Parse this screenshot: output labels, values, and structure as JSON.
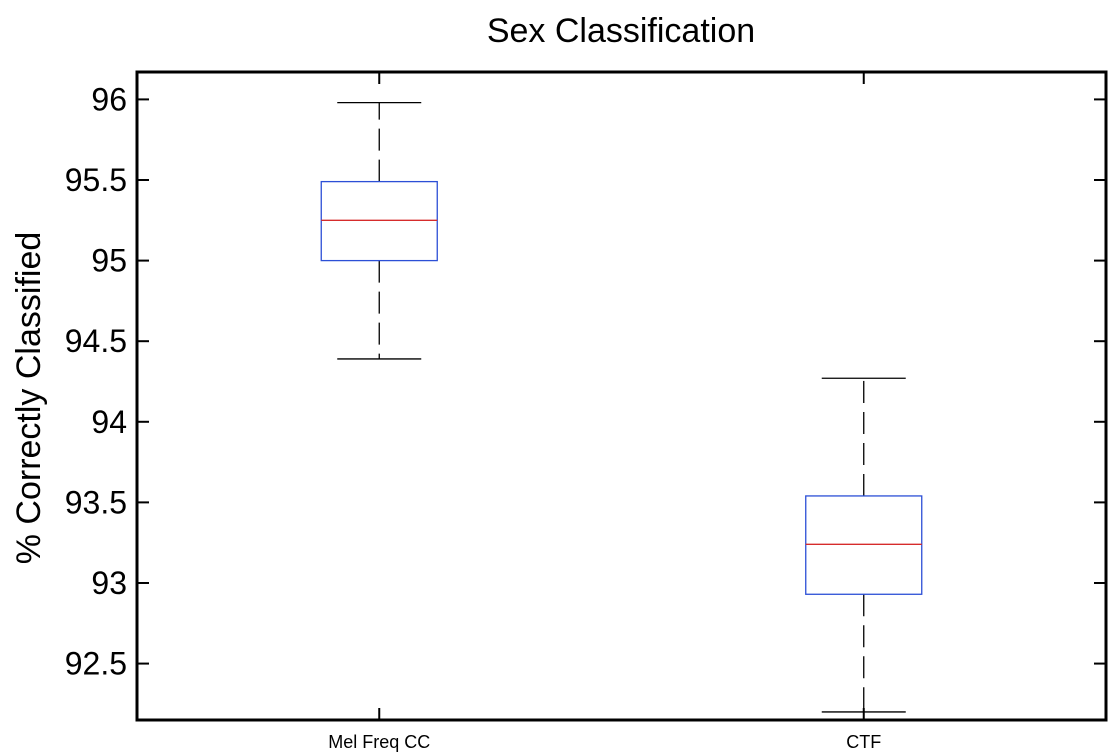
{
  "chart_data": {
    "type": "box",
    "title": "Sex Classification",
    "xlabel": "",
    "ylabel": "% Correctly Classified",
    "ylim": [
      92.15,
      96.17
    ],
    "yticks": [
      92.5,
      93,
      93.5,
      94,
      94.5,
      95,
      95.5,
      96
    ],
    "ytick_labels": [
      "92.5",
      "93",
      "93.5",
      "94",
      "94.5",
      "95",
      "95.5",
      "96"
    ],
    "categories": [
      "Mel Freq CC",
      "CTF"
    ],
    "boxes": [
      {
        "min": 94.39,
        "q1": 95.0,
        "median": 95.25,
        "q3": 95.49,
        "max": 95.98
      },
      {
        "min": 92.2,
        "q1": 92.93,
        "median": 93.24,
        "q3": 93.54,
        "max": 94.27
      }
    ],
    "grid": false,
    "colors": {
      "box": "#2c4fd6",
      "median": "#d62c2c",
      "whisker": "#000000"
    }
  }
}
